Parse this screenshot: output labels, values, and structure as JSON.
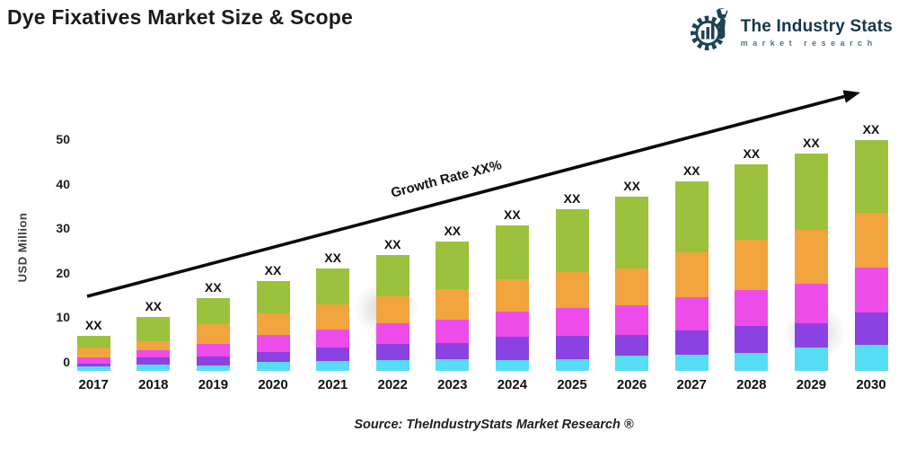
{
  "header": {
    "title": "Dye Fixatives Market Size & Scope",
    "logo": {
      "brand": "The Industry Stats",
      "tagline": "market research",
      "icon": "gear-wrench-barchart-icon",
      "brand_color": "#15374a",
      "tagline_color": "#527487"
    }
  },
  "chart": {
    "y_axis_label": "USD Million",
    "y_ticks": [
      0,
      10,
      20,
      30,
      40,
      50
    ],
    "bar_value_label": "XX",
    "growth_label": "Growth Rate XX%",
    "source": "Source: TheIndustryStats Market Research ®"
  },
  "chart_data": {
    "type": "bar",
    "stacked": true,
    "title": "Dye Fixatives Market Size & Scope",
    "xlabel": "",
    "ylabel": "USD Million",
    "ylim": [
      0,
      50
    ],
    "grid": false,
    "legend": "none",
    "categories": [
      "2017",
      "2018",
      "2019",
      "2020",
      "2021",
      "2022",
      "2023",
      "2024",
      "2025",
      "2026",
      "2027",
      "2028",
      "2029",
      "2030"
    ],
    "series": [
      {
        "name": "segment-1-cyan",
        "color": "#57dcf5",
        "values": [
          0.9,
          1.4,
          1.3,
          2.0,
          2.3,
          2.5,
          2.6,
          2.5,
          2.7,
          3.4,
          3.6,
          4.1,
          5.3,
          5.8
        ]
      },
      {
        "name": "segment-2-purple",
        "color": "#8a42e3",
        "values": [
          0.8,
          1.7,
          1.9,
          2.3,
          3.0,
          3.5,
          3.7,
          5.2,
          5.1,
          4.7,
          5.5,
          5.9,
          5.3,
          7.3
        ]
      },
      {
        "name": "segment-3-magenta",
        "color": "#ed4ce8",
        "values": [
          1.4,
          1.6,
          2.9,
          3.7,
          3.9,
          4.7,
          5.2,
          5.6,
          6.4,
          6.7,
          7.5,
          8.1,
          8.9,
          10.1
        ]
      },
      {
        "name": "segment-4-orange",
        "color": "#f2a43f",
        "values": [
          2.1,
          2.0,
          4.4,
          5.0,
          5.7,
          6.1,
          6.9,
          7.3,
          7.9,
          8.3,
          10.0,
          11.4,
          12.1,
          12.3
        ]
      },
      {
        "name": "segment-5-green",
        "color": "#9cc13c",
        "values": [
          2.7,
          5.4,
          5.9,
          7.2,
          8.1,
          9.2,
          10.6,
          12.0,
          14.2,
          16.0,
          16.0,
          17.0,
          17.2,
          16.3
        ]
      }
    ],
    "totals_estimated": [
      7.9,
      12.1,
      16.4,
      20.2,
      23.0,
      26.0,
      29.0,
      32.6,
      36.3,
      39.1,
      42.6,
      46.5,
      48.8,
      51.8
    ],
    "bar_value_labels": "XX",
    "annotation": "Growth Rate XX%",
    "annotation_style": "diagonal-arrow"
  }
}
